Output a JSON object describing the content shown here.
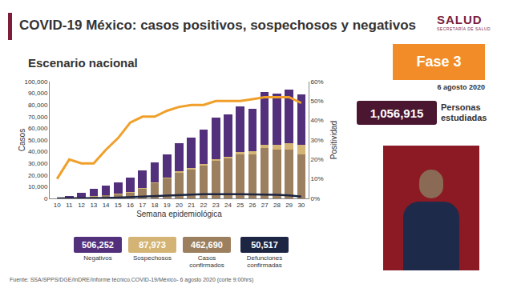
{
  "header": {
    "title": "COVID-19 México: casos positivos, sospechosos y negativos",
    "logo": "SALUD",
    "logo_subtitle": "SECRETARÍA DE SALUD"
  },
  "phase": {
    "label": "Fase 3",
    "date": "6 agosto 2020"
  },
  "studied": {
    "value": "1,056,915",
    "label": "Personas estudiadas"
  },
  "source": "Fuente: SSA/SPPS/DGE/InDRE/Informe técnico.COVID-19/México- 6 agosto 2020 (corte 9:00hrs)",
  "chart_data": {
    "type": "bar",
    "title": "Escenario nacional",
    "x_label": "Semana epidemiológica",
    "y_label": "Casos",
    "y2_label": "Positividad",
    "stacked": true,
    "grid": false,
    "x": [
      10,
      11,
      12,
      13,
      14,
      15,
      16,
      17,
      18,
      19,
      20,
      21,
      22,
      23,
      24,
      25,
      26,
      27,
      28,
      29,
      30
    ],
    "xlim": [
      9.4,
      30.6
    ],
    "xticks": [
      10,
      11,
      12,
      13,
      14,
      15,
      16,
      17,
      18,
      19,
      20,
      21,
      22,
      23,
      24,
      25,
      26,
      27,
      28,
      29,
      30
    ],
    "ylim": [
      0,
      100000
    ],
    "yticks": [
      0,
      {
        "value": 10000,
        "label": "10,000"
      },
      {
        "value": 20000,
        "label": "20,000"
      },
      {
        "value": 30000,
        "label": "30,000"
      },
      {
        "value": 40000,
        "label": "40,000"
      },
      {
        "value": 50000,
        "label": "50,000"
      },
      {
        "value": 60000,
        "label": "60,000"
      },
      {
        "value": 70000,
        "label": "70,000"
      },
      {
        "value": 80000,
        "label": "80,000"
      },
      {
        "value": 90000,
        "label": "90,000"
      },
      {
        "value": 100000,
        "label": "100,000"
      }
    ],
    "y2lim": [
      0,
      60
    ],
    "y2ticks": [
      {
        "value": 0,
        "label": "0%"
      },
      {
        "value": 10,
        "label": "10%"
      },
      {
        "value": 20,
        "label": "20%"
      },
      {
        "value": 30,
        "label": "30%"
      },
      {
        "value": 40,
        "label": "40%"
      },
      {
        "value": 50,
        "label": "50%"
      },
      {
        "value": 60,
        "label": "60%"
      }
    ],
    "series": [
      {
        "name": "Negativos",
        "total": "506,252",
        "type": "bar",
        "color": "#52307c",
        "values": [
          250,
          1600,
          4000,
          6100,
          8000,
          9500,
          12400,
          14800,
          17200,
          20100,
          24000,
          25900,
          29800,
          35600,
          36400,
          39000,
          36500,
          45000,
          44000,
          46000,
          43000
        ]
      },
      {
        "name": "Sospechosos",
        "total": "87,973",
        "type": "bar",
        "color": "#d4b474",
        "values": [
          50,
          200,
          300,
          400,
          500,
          500,
          600,
          700,
          800,
          900,
          1000,
          1100,
          1200,
          1400,
          1600,
          2000,
          2500,
          3000,
          4000,
          5000,
          8000
        ]
      },
      {
        "name": "Casos confirmados",
        "total": "462,690",
        "type": "bar",
        "color": "#9c7f5e",
        "values": [
          0,
          200,
          700,
          1500,
          2500,
          3500,
          5000,
          8500,
          13000,
          17000,
          22000,
          25000,
          28000,
          32000,
          34000,
          38000,
          38000,
          43000,
          42000,
          42000,
          38000
        ]
      },
      {
        "name": "Defunciones confirmadas",
        "total": "50,517",
        "type": "line",
        "color": "#1c2541",
        "values": [
          0,
          10,
          50,
          150,
          400,
          700,
          1200,
          1800,
          2300,
          2700,
          3100,
          3300,
          3600,
          3700,
          3800,
          3600,
          3400,
          3300,
          3000,
          2500,
          1500
        ]
      },
      {
        "type": "line",
        "axis": "y2",
        "color": "#f0a02a",
        "values": [
          10,
          20,
          18,
          18,
          25,
          31,
          39,
          42,
          42,
          45,
          47,
          48,
          48,
          50,
          50,
          50,
          51,
          52,
          52,
          52,
          49
        ]
      }
    ]
  }
}
